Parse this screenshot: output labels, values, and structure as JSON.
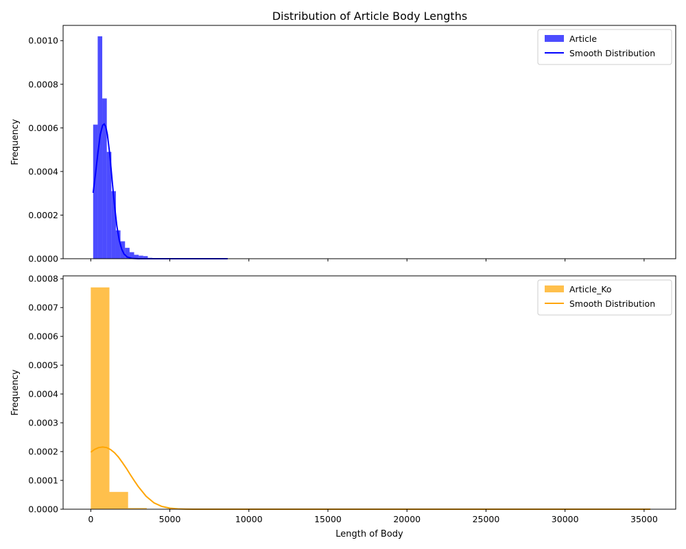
{
  "title": "Distribution of Article Body Lengths",
  "chart_data": [
    {
      "type": "bar",
      "title": "Distribution of Article Body Lengths",
      "xlabel": "",
      "ylabel": "Frequency",
      "xlim": [
        -1750,
        37000
      ],
      "ylim": [
        0,
        0.00107
      ],
      "yticks": [
        0.0,
        0.0002,
        0.0004,
        0.0006,
        0.0008,
        0.001
      ],
      "ytick_labels": [
        "0.0000",
        "0.0002",
        "0.0004",
        "0.0006",
        "0.0008",
        "0.0010"
      ],
      "xticks": [
        0,
        5000,
        10000,
        15000,
        20000,
        25000,
        30000,
        35000
      ],
      "xtick_labels": [],
      "legend_loc": "upper right",
      "histogram": {
        "name": "Article",
        "color": "#0000ff",
        "alpha": 0.7,
        "bin_width": 288,
        "bins": [
          {
            "x0": 150,
            "value": 0.000615
          },
          {
            "x0": 438,
            "value": 0.00102
          },
          {
            "x0": 726,
            "value": 0.000735
          },
          {
            "x0": 1014,
            "value": 0.00049
          },
          {
            "x0": 1302,
            "value": 0.00031
          },
          {
            "x0": 1590,
            "value": 0.00013
          },
          {
            "x0": 1878,
            "value": 8e-05
          },
          {
            "x0": 2166,
            "value": 5e-05
          },
          {
            "x0": 2454,
            "value": 3e-05
          },
          {
            "x0": 2742,
            "value": 1.8e-05
          },
          {
            "x0": 3030,
            "value": 1.4e-05
          },
          {
            "x0": 3318,
            "value": 1.2e-05
          },
          {
            "x0": 3606,
            "value": 4e-06
          },
          {
            "x0": 3894,
            "value": 3e-06
          },
          {
            "x0": 4182,
            "value": 3e-06
          },
          {
            "x0": 4470,
            "value": 2e-06
          },
          {
            "x0": 4758,
            "value": 2e-06
          },
          {
            "x0": 5046,
            "value": 1e-06
          },
          {
            "x0": 5334,
            "value": 1e-06
          },
          {
            "x0": 5622,
            "value": 1e-06
          },
          {
            "x0": 5910,
            "value": 1e-06
          },
          {
            "x0": 6198,
            "value": 1e-06
          },
          {
            "x0": 6486,
            "value": 1e-06
          },
          {
            "x0": 6774,
            "value": 1e-06
          },
          {
            "x0": 7062,
            "value": 1e-06
          },
          {
            "x0": 7350,
            "value": 1e-06
          },
          {
            "x0": 7638,
            "value": 1e-06
          },
          {
            "x0": 7926,
            "value": 1e-06
          },
          {
            "x0": 8214,
            "value": 1e-06
          },
          {
            "x0": 8502,
            "value": 1e-06
          }
        ]
      },
      "curve": {
        "name": "Smooth Distribution",
        "color": "#0000ff",
        "x": [
          150,
          300,
          450,
          600,
          750,
          850,
          950,
          1050,
          1200,
          1350,
          1500,
          1650,
          1800,
          1950,
          2100,
          2300,
          2600,
          3000,
          3500,
          4500,
          6000,
          8660
        ],
        "y": [
          0.000302,
          0.00039,
          0.000485,
          0.00057,
          0.000612,
          0.000618,
          0.000605,
          0.00057,
          0.00048,
          0.00036,
          0.000245,
          0.00015,
          8.5e-05,
          4.5e-05,
          2.2e-05,
          8e-06,
          1.5e-06,
          2e-07,
          0.0,
          0.0,
          0.0,
          0.0
        ]
      }
    },
    {
      "type": "bar",
      "title": "",
      "xlabel": "Length of Body",
      "ylabel": "Frequency",
      "xlim": [
        -1750,
        37000
      ],
      "ylim": [
        0,
        0.00081
      ],
      "yticks": [
        0.0,
        0.0001,
        0.0002,
        0.0003,
        0.0004,
        0.0005,
        0.0006,
        0.0007,
        0.0008
      ],
      "ytick_labels": [
        "0.0000",
        "0.0001",
        "0.0002",
        "0.0003",
        "0.0004",
        "0.0005",
        "0.0006",
        "0.0007",
        "0.0008"
      ],
      "xticks": [
        0,
        5000,
        10000,
        15000,
        20000,
        25000,
        30000,
        35000
      ],
      "xtick_labels": [
        "0",
        "5000",
        "10000",
        "15000",
        "20000",
        "25000",
        "30000",
        "35000"
      ],
      "legend_loc": "upper right",
      "histogram": {
        "name": "Article_Ko",
        "color": "#ffa500",
        "alpha": 0.7,
        "bin_width": 1180,
        "bins": [
          {
            "x0": 0,
            "value": 0.00077
          },
          {
            "x0": 1180,
            "value": 6e-05
          },
          {
            "x0": 2360,
            "value": 4e-06
          },
          {
            "x0": 3540,
            "value": 1e-06
          },
          {
            "x0": 4720,
            "value": 5e-07
          },
          {
            "x0": 5900,
            "value": 5e-07
          },
          {
            "x0": 7080,
            "value": 3e-07
          },
          {
            "x0": 8260,
            "value": 3e-07
          },
          {
            "x0": 9440,
            "value": 3e-07
          },
          {
            "x0": 10620,
            "value": 2e-07
          },
          {
            "x0": 11800,
            "value": 2e-07
          },
          {
            "x0": 12980,
            "value": 2e-07
          },
          {
            "x0": 14160,
            "value": 2e-07
          },
          {
            "x0": 15340,
            "value": 2e-07
          },
          {
            "x0": 16520,
            "value": 2e-07
          },
          {
            "x0": 17700,
            "value": 2e-07
          },
          {
            "x0": 18880,
            "value": 2e-07
          },
          {
            "x0": 20060,
            "value": 2e-07
          },
          {
            "x0": 21240,
            "value": 2e-07
          },
          {
            "x0": 22420,
            "value": 2e-07
          },
          {
            "x0": 23600,
            "value": 2e-07
          },
          {
            "x0": 24780,
            "value": 2e-07
          },
          {
            "x0": 25960,
            "value": 2e-07
          },
          {
            "x0": 27140,
            "value": 2e-07
          },
          {
            "x0": 28320,
            "value": 2e-07
          },
          {
            "x0": 29500,
            "value": 2e-07
          },
          {
            "x0": 30680,
            "value": 2e-07
          },
          {
            "x0": 31860,
            "value": 2e-07
          },
          {
            "x0": 33040,
            "value": 2e-07
          },
          {
            "x0": 34220,
            "value": 2e-07
          }
        ]
      },
      "curve": {
        "name": "Smooth Distribution",
        "color": "#ffa500",
        "x": [
          0,
          250,
          500,
          750,
          1000,
          1250,
          1500,
          1750,
          2000,
          2250,
          2500,
          2750,
          3000,
          3500,
          4000,
          4500,
          5000,
          5500,
          6000,
          6500,
          7000,
          8000,
          10000,
          15000,
          20000,
          25000,
          30000,
          35400
        ],
        "y": [
          0.000198,
          0.000208,
          0.000214,
          0.000216,
          0.000214,
          0.000207,
          0.000196,
          0.000181,
          0.000162,
          0.000142,
          0.00012,
          9.9e-05,
          7.9e-05,
          4.5e-05,
          2.2e-05,
          9.5e-06,
          3.5e-06,
          1.1e-06,
          3e-07,
          8e-08,
          2e-08,
          0.0,
          0.0,
          0.0,
          0.0,
          0.0,
          0.0,
          0.0
        ]
      }
    }
  ]
}
